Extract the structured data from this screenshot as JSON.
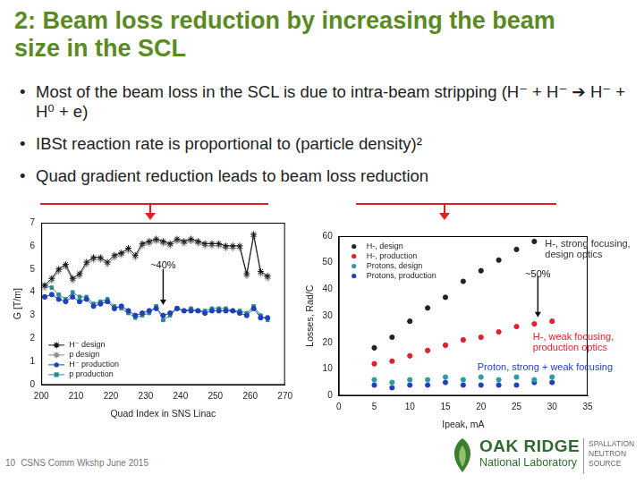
{
  "slide": {
    "title": "2: Beam loss reduction by increasing the beam size in the SCL",
    "bullets": [
      "Most of the beam loss in the SCL is due to intra-beam stripping (H⁻ + H⁻ ➔ H⁻ + H⁰ + e)",
      "IBSt reaction rate is proportional to (particle density)²",
      "Quad gradient reduction leads to beam loss reduction"
    ],
    "footer": {
      "page": "10",
      "text": "CSNS Comm Wkshp June 2015"
    },
    "logo": {
      "name": "OAK RIDGE",
      "subname": "National Laboratory",
      "unit": [
        "SPALLATION",
        "NEUTRON",
        "SOURCE"
      ]
    }
  },
  "chart_data": [
    {
      "type": "line",
      "x_label": "Quad Index in SNS Linac",
      "y_label": "G [T/m]",
      "x": [
        201,
        203,
        205,
        207,
        209,
        211,
        213,
        215,
        217,
        219,
        221,
        223,
        225,
        227,
        229,
        231,
        233,
        235,
        237,
        239,
        241,
        243,
        245,
        247,
        249,
        251,
        253,
        255,
        257,
        259,
        261,
        263,
        265
      ],
      "series": [
        {
          "name": "H⁻ design",
          "color": "#111111",
          "marker": "star",
          "line_style": "solid",
          "values": [
            4.3,
            4.6,
            5.0,
            5.2,
            4.6,
            4.8,
            5.3,
            5.5,
            5.5,
            5.3,
            5.6,
            5.7,
            5.9,
            5.6,
            6.1,
            6.2,
            6.3,
            6.2,
            6.1,
            6.3,
            6.2,
            6.3,
            6.2,
            6.1,
            6.1,
            6.1,
            6.0,
            6.0,
            6.0,
            4.8,
            6.5,
            4.9,
            4.7
          ]
        },
        {
          "name": "p design",
          "color": "#8a8a8a",
          "marker": "star",
          "line_style": "solid",
          "values": [
            4.2,
            4.5,
            4.9,
            5.1,
            4.5,
            4.7,
            5.2,
            5.4,
            5.4,
            5.2,
            5.5,
            5.6,
            5.8,
            5.5,
            6.0,
            6.1,
            6.2,
            6.1,
            6.0,
            6.2,
            6.1,
            6.2,
            6.1,
            6.0,
            6.0,
            6.0,
            5.9,
            5.9,
            5.9,
            4.7,
            6.4,
            4.8,
            4.6
          ]
        },
        {
          "name": "H⁻ production",
          "color": "#1f3fbf",
          "marker": "circle",
          "line_style": "solid",
          "values": [
            3.8,
            3.9,
            3.7,
            3.6,
            3.8,
            3.6,
            3.7,
            3.4,
            3.5,
            3.6,
            3.3,
            3.4,
            3.2,
            3.0,
            3.1,
            3.2,
            3.3,
            3.0,
            3.1,
            3.3,
            3.2,
            3.2,
            3.2,
            3.1,
            3.2,
            3.2,
            3.2,
            3.2,
            3.1,
            3.0,
            3.3,
            2.9,
            2.9
          ]
        },
        {
          "name": "p production",
          "color": "#2e8b8b",
          "marker": "square",
          "line_style": "solid",
          "values": [
            4.3,
            4.2,
            3.9,
            3.7,
            4.0,
            3.8,
            3.8,
            3.5,
            3.6,
            3.7,
            3.4,
            3.3,
            3.1,
            2.9,
            3.0,
            3.1,
            3.4,
            2.8,
            3.0,
            3.3,
            3.2,
            3.3,
            3.2,
            3.2,
            3.3,
            3.3,
            3.3,
            3.2,
            3.2,
            3.1,
            3.4,
            3.0,
            2.8
          ]
        }
      ],
      "xlim": [
        200,
        270
      ],
      "xticks": [
        200,
        210,
        220,
        230,
        240,
        250,
        260,
        270
      ],
      "ylim": [
        0,
        7
      ],
      "yticks": [
        0,
        1,
        2,
        3,
        4,
        5,
        6,
        7
      ],
      "grid": false,
      "legend": "lower left",
      "annotations": [
        "~40%"
      ]
    },
    {
      "type": "scatter",
      "x_label": "Ipeak, mA",
      "y_label": "Losses, Rad/C",
      "series": [
        {
          "name": "H-, design",
          "color": "#222222",
          "marker": "circle",
          "line_style": "none",
          "x": [
            5,
            7.5,
            10,
            12.5,
            15,
            17.5,
            20,
            22.5,
            25,
            27.5
          ],
          "values": [
            18,
            22,
            28,
            33,
            37,
            43,
            47,
            51,
            55,
            58
          ]
        },
        {
          "name": "H-, production",
          "color": "#e0202a",
          "marker": "circle",
          "line_style": "none",
          "x": [
            5,
            7.5,
            10,
            12.5,
            15,
            17.5,
            20,
            22.5,
            25,
            27.5,
            30
          ],
          "values": [
            12,
            13,
            15,
            17,
            19,
            21,
            22,
            24,
            26,
            27,
            28
          ]
        },
        {
          "name": "Protons, design",
          "color": "#2a9d9d",
          "marker": "circle",
          "line_style": "none",
          "x": [
            5,
            7.5,
            10,
            12.5,
            15,
            17.5,
            20,
            22.5,
            25,
            27.5,
            30
          ],
          "values": [
            6,
            5,
            6,
            6,
            7,
            6,
            7,
            6,
            7,
            6,
            7
          ]
        },
        {
          "name": "Protons, production",
          "color": "#1f3fbf",
          "marker": "circle",
          "line_style": "none",
          "x": [
            5,
            7.5,
            10,
            12.5,
            15,
            17.5,
            20,
            22.5,
            25,
            27.5,
            30
          ],
          "values": [
            4,
            3,
            4,
            4,
            5,
            4,
            4,
            4,
            4,
            5,
            5
          ]
        }
      ],
      "xlim": [
        0,
        35
      ],
      "xticks": [
        0,
        5,
        10,
        15,
        20,
        25,
        30,
        35
      ],
      "ylim": [
        0,
        60
      ],
      "yticks": [
        0,
        10,
        20,
        30,
        40,
        50,
        60
      ],
      "grid": false,
      "legend": "upper left",
      "annotations": [
        "~50%",
        "H-, strong focusing, design optics",
        "H-, weak focusing, production optics",
        "Proton, strong + weak focusing"
      ]
    }
  ]
}
